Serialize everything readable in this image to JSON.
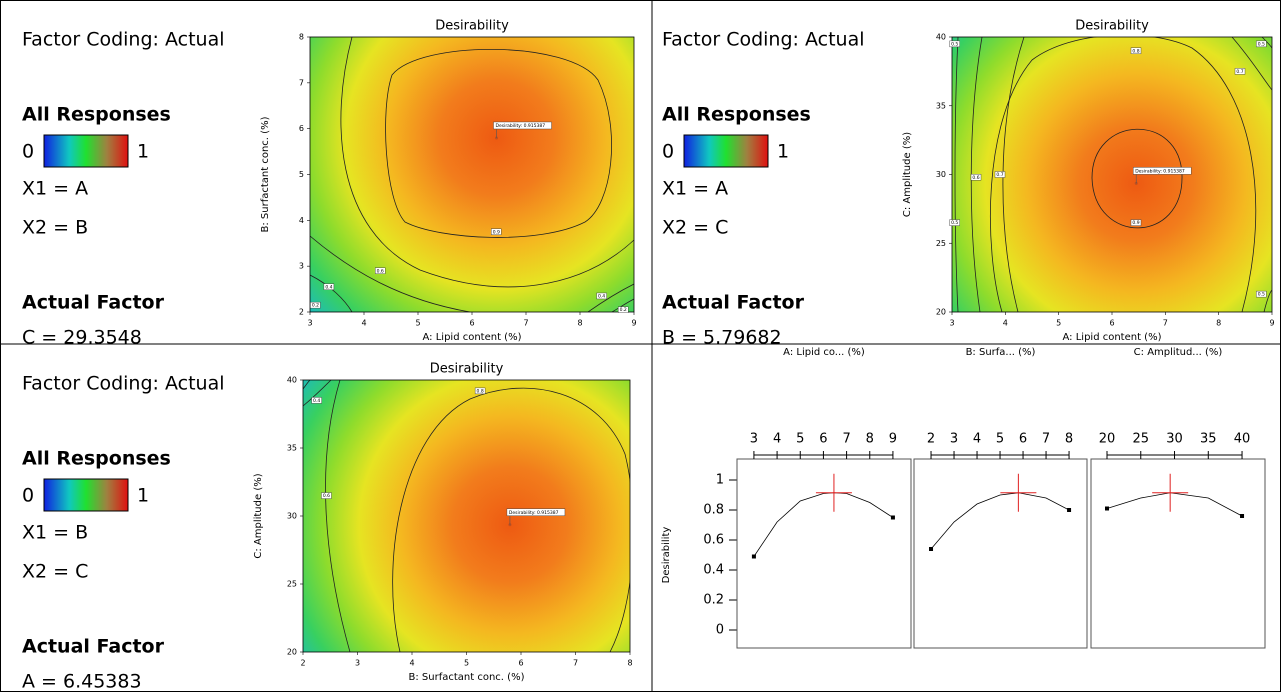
{
  "chart_data": [
    {
      "type": "contour",
      "title": "Desirability",
      "xlabel": "A: Lipid content  (%)",
      "ylabel": "B: Surfactant conc. (%)",
      "xlim": [
        3,
        9
      ],
      "xticks": [
        3,
        4,
        5,
        6,
        7,
        8,
        9
      ],
      "ylim": [
        2,
        8
      ],
      "yticks": [
        2,
        3,
        4,
        5,
        6,
        7,
        8
      ],
      "factor_coding": "Factor Coding: Actual",
      "legend_title": "All Responses",
      "colorbar_range": [
        0,
        1
      ],
      "x1": "X1 = A",
      "x2": "X2 = B",
      "actual_factor_title": "Actual Factor",
      "actual_factor": "C = 29.3548",
      "optimum": {
        "x": 6.45383,
        "y": 5.79682,
        "label": "Desirability: 0.915387"
      },
      "contour_labels": [
        {
          "value": 0.9,
          "x": 6.45,
          "y": 3.75
        },
        {
          "value": 0.4,
          "x": 3.35,
          "y": 2.55
        },
        {
          "value": 0.6,
          "x": 4.3,
          "y": 2.9
        },
        {
          "value": 0.2,
          "x": 3.1,
          "y": 2.15
        },
        {
          "value": 0.4,
          "x": 8.4,
          "y": 2.35
        },
        {
          "value": 0.2,
          "x": 8.8,
          "y": 2.05
        }
      ]
    },
    {
      "type": "contour",
      "title": "Desirability",
      "xlabel": "A: Lipid content  (%)",
      "ylabel": "C: Amplitude (%)",
      "xlim": [
        3,
        9
      ],
      "xticks": [
        3,
        4,
        5,
        6,
        7,
        8,
        9
      ],
      "ylim": [
        20,
        40
      ],
      "yticks": [
        20,
        25,
        30,
        35,
        40
      ],
      "factor_coding": "Factor Coding: Actual",
      "legend_title": "All Responses",
      "colorbar_range": [
        0,
        1
      ],
      "x1": "X1 = A",
      "x2": "X2 = C",
      "actual_factor_title": "Actual Factor",
      "actual_factor": "B = 5.79682",
      "optimum": {
        "x": 6.45383,
        "y": 29.3548,
        "label": "Desirability: 0.915387"
      },
      "contour_labels": [
        {
          "value": 0.8,
          "x": 6.45,
          "y": 39
        },
        {
          "value": 0.9,
          "x": 6.45,
          "y": 26.5
        },
        {
          "value": 0.7,
          "x": 3.9,
          "y": 30
        },
        {
          "value": 0.6,
          "x": 3.45,
          "y": 29.8
        },
        {
          "value": 0.5,
          "x": 3.05,
          "y": 26.5
        },
        {
          "value": 0.5,
          "x": 3.05,
          "y": 39.5
        },
        {
          "value": 0.7,
          "x": 8.4,
          "y": 37.5
        },
        {
          "value": 0.5,
          "x": 8.8,
          "y": 39.5
        },
        {
          "value": 0.5,
          "x": 8.8,
          "y": 21.3
        }
      ]
    },
    {
      "type": "contour",
      "title": "Desirability",
      "xlabel": "B: Surfactant conc. (%)",
      "ylabel": "C: Amplitude (%)",
      "xlim": [
        2,
        8
      ],
      "xticks": [
        2,
        3,
        4,
        5,
        6,
        7,
        8
      ],
      "ylim": [
        20,
        40
      ],
      "yticks": [
        20,
        25,
        30,
        35,
        40
      ],
      "factor_coding": "Factor Coding: Actual",
      "legend_title": "All Responses",
      "colorbar_range": [
        0,
        1
      ],
      "x1": "X1 = B",
      "x2": "X2 = C",
      "actual_factor_title": "Actual Factor",
      "actual_factor": "A = 6.45383",
      "optimum": {
        "x": 5.79682,
        "y": 29.3548,
        "label": "Desirability: 0.915387"
      },
      "contour_labels": [
        {
          "value": 0.8,
          "x": 5.25,
          "y": 39.2
        },
        {
          "value": 0.6,
          "x": 2.43,
          "y": 31.5
        },
        {
          "value": 0.4,
          "x": 2.25,
          "y": 38.5
        }
      ]
    },
    {
      "type": "ramps",
      "ylabel": "Desirability",
      "ylim": [
        -0.12,
        1.14
      ],
      "yticks": [
        0,
        0.2,
        0.4,
        0.6,
        0.8,
        1
      ],
      "panels": [
        {
          "header": "A: Lipid co... (%)",
          "xlim": [
            2.27,
            9.78
          ],
          "xticks": [
            3,
            4,
            5,
            6,
            7,
            8,
            9
          ],
          "x": [
            3,
            4,
            5,
            6,
            6.45383,
            7,
            8,
            9
          ],
          "values": [
            0.49,
            0.72,
            0.86,
            0.91,
            0.915,
            0.91,
            0.85,
            0.75
          ],
          "current": {
            "x": 6.45383,
            "y": 0.915
          }
        },
        {
          "header": "B: Surfa... (%)",
          "xlim": [
            1.26,
            8.78
          ],
          "xticks": [
            2,
            3,
            4,
            5,
            6,
            7,
            8
          ],
          "x": [
            2,
            3,
            4,
            5,
            5.79682,
            7,
            8
          ],
          "values": [
            0.54,
            0.72,
            0.84,
            0.9,
            0.915,
            0.88,
            0.8
          ],
          "current": {
            "x": 5.79682,
            "y": 0.915
          }
        },
        {
          "header": "C: Amplitud... (%)",
          "xlim": [
            17.63,
            43.4
          ],
          "xticks": [
            20,
            25,
            30,
            35,
            40
          ],
          "x": [
            20,
            25,
            29.3548,
            35,
            40
          ],
          "values": [
            0.81,
            0.88,
            0.915,
            0.88,
            0.76
          ],
          "current": {
            "x": 29.3548,
            "y": 0.915
          }
        }
      ]
    }
  ]
}
